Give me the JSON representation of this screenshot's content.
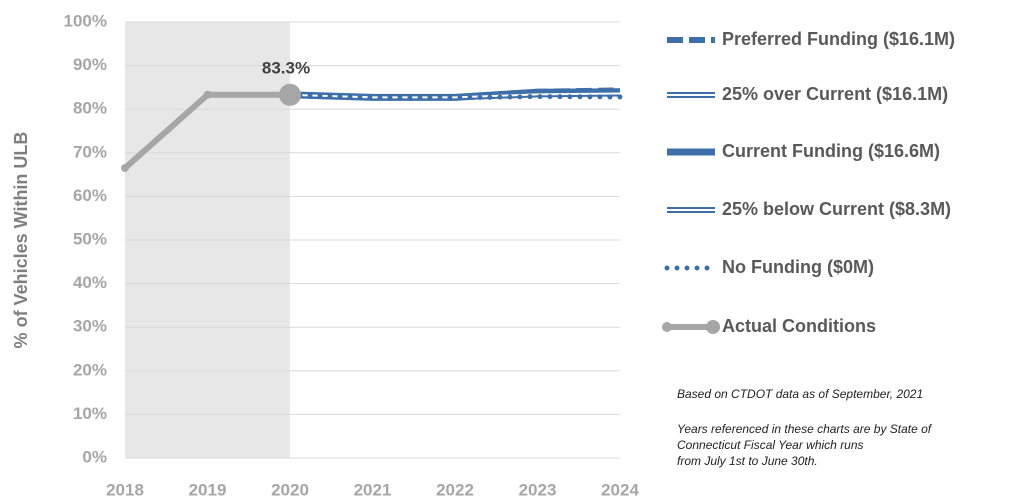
{
  "chart_data": {
    "type": "line",
    "y_axis_label": "% of Vehicles Within ULB",
    "categories": [
      "2018",
      "2019",
      "2020",
      "2021",
      "2022",
      "2023",
      "2024"
    ],
    "ylim": [
      0,
      100
    ],
    "yticks": [
      {
        "value": 0,
        "label": "0%"
      },
      {
        "value": 10,
        "label": "10%"
      },
      {
        "value": 20,
        "label": "20%"
      },
      {
        "value": 30,
        "label": "30%"
      },
      {
        "value": 40,
        "label": "40%"
      },
      {
        "value": 50,
        "label": "50%"
      },
      {
        "value": 60,
        "label": "60%"
      },
      {
        "value": 70,
        "label": "70%"
      },
      {
        "value": 80,
        "label": "80%"
      },
      {
        "value": 90,
        "label": "90%"
      },
      {
        "value": 100,
        "label": "100%"
      }
    ],
    "grid": true,
    "legend": "right",
    "series": [
      {
        "name": "Preferred Funding ($16.1M)",
        "color": "#3f6fa8",
        "style": "dashed",
        "values": [
          null,
          null,
          83.3,
          82.7,
          82.7,
          84.0,
          84.3
        ]
      },
      {
        "name": "25% over Current ($16.1M)",
        "color": "#3f6fa8",
        "style": "double",
        "values": [
          null,
          null,
          83.3,
          82.7,
          82.7,
          83.8,
          84.1
        ]
      },
      {
        "name": "Current Funding ($16.6M)",
        "color": "#3f6fa8",
        "style": "solid",
        "values": [
          null,
          null,
          83.3,
          82.7,
          82.7,
          83.9,
          84.0
        ]
      },
      {
        "name": "25% below Current ($8.3M)",
        "color": "#3f6fa8",
        "style": "double",
        "values": [
          null,
          null,
          83.3,
          82.7,
          82.7,
          83.4,
          83.6
        ]
      },
      {
        "name": "No Funding ($0M)",
        "color": "#3f6fa8",
        "style": "dotted",
        "values": [
          null,
          null,
          83.3,
          82.6,
          82.6,
          82.9,
          82.8
        ]
      },
      {
        "name": "Actual Conditions",
        "color": "#a6a6a6",
        "style": "markers",
        "values": [
          66.5,
          83.3,
          83.3,
          null,
          null,
          null,
          null
        ],
        "value_labels": [
          null,
          null,
          "83.3%",
          null,
          null,
          null,
          null
        ]
      }
    ],
    "notes": [
      "Based on CTDOT data as of September, 2021"
    ],
    "note_lines": [
      "Years referenced in these charts are by State of",
      "Connecticut Fiscal Year which runs",
      "from July 1st to June 30th."
    ]
  }
}
